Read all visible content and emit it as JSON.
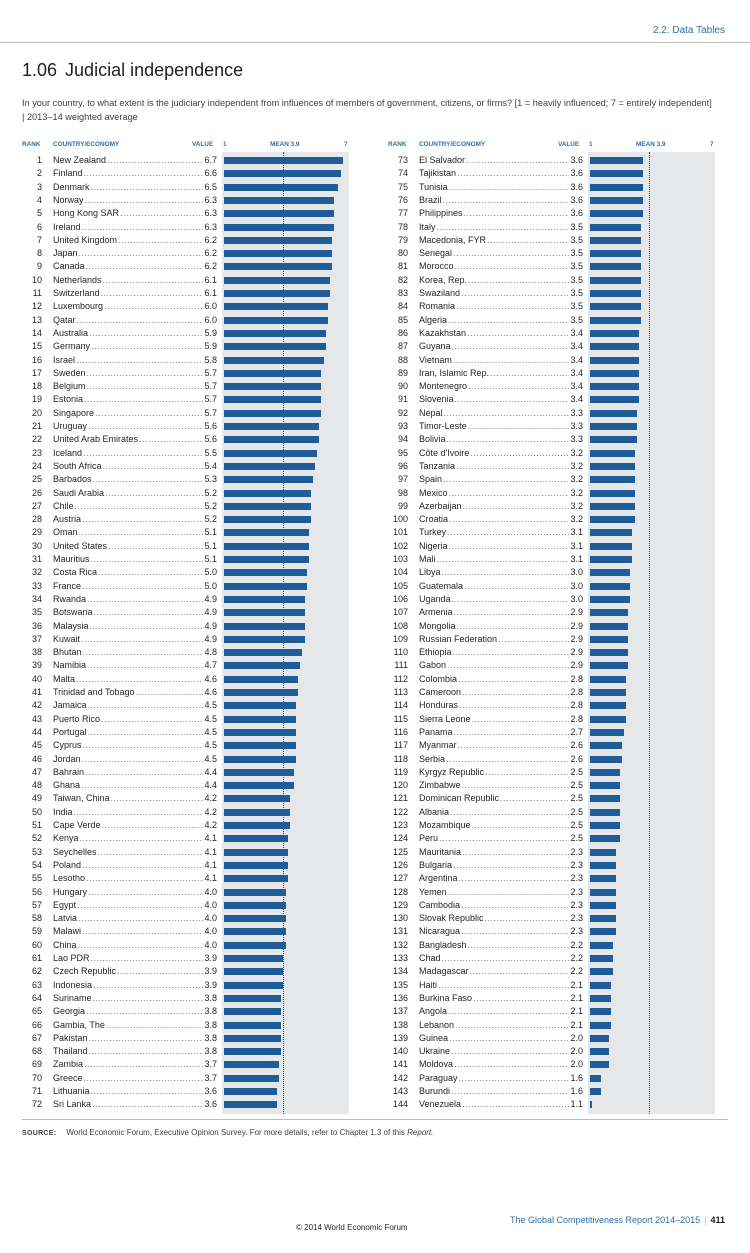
{
  "header": {
    "section": "2.2: Data Tables",
    "number": "1.06",
    "title": "Judicial independence",
    "question_line1": "In your country, to what extent is the judiciary independent from influences of members of government, citizens, or firms? [1 = heavily influenced; 7 = entirely independent]",
    "question_line2": "| 2013–14 weighted average"
  },
  "columns": {
    "rank": "RANK",
    "country": "COUNTRY/ECONOMY",
    "value": "VALUE",
    "scale_min": "1",
    "mean": "MEAN 3.9",
    "scale_max": "7"
  },
  "chart_data": {
    "type": "bar",
    "orientation": "horizontal",
    "xlim": [
      1,
      7
    ],
    "mean": 3.9,
    "rows": [
      {
        "rank": "1",
        "country": "New Zealand",
        "value": 6.7
      },
      {
        "rank": "2",
        "country": "Finland",
        "value": 6.6
      },
      {
        "rank": "3",
        "country": "Denmark",
        "value": 6.5
      },
      {
        "rank": "4",
        "country": "Norway",
        "value": 6.3
      },
      {
        "rank": "5",
        "country": "Hong Kong SAR",
        "value": 6.3
      },
      {
        "rank": "6",
        "country": "Ireland",
        "value": 6.3
      },
      {
        "rank": "7",
        "country": "United Kingdom",
        "value": 6.2
      },
      {
        "rank": "8",
        "country": "Japan",
        "value": 6.2
      },
      {
        "rank": "9",
        "country": "Canada",
        "value": 6.2
      },
      {
        "rank": "10",
        "country": "Netherlands",
        "value": 6.1
      },
      {
        "rank": "11",
        "country": "Switzerland",
        "value": 6.1
      },
      {
        "rank": "12",
        "country": "Luxembourg",
        "value": 6.0
      },
      {
        "rank": "13",
        "country": "Qatar",
        "value": 6.0
      },
      {
        "rank": "14",
        "country": "Australia",
        "value": 5.9
      },
      {
        "rank": "15",
        "country": "Germany",
        "value": 5.9
      },
      {
        "rank": "16",
        "country": "Israel",
        "value": 5.8
      },
      {
        "rank": "17",
        "country": "Sweden",
        "value": 5.7
      },
      {
        "rank": "18",
        "country": "Belgium",
        "value": 5.7
      },
      {
        "rank": "19",
        "country": "Estonia",
        "value": 5.7
      },
      {
        "rank": "20",
        "country": "Singapore",
        "value": 5.7
      },
      {
        "rank": "21",
        "country": "Uruguay",
        "value": 5.6
      },
      {
        "rank": "22",
        "country": "United Arab Emirates",
        "value": 5.6
      },
      {
        "rank": "23",
        "country": "Iceland",
        "value": 5.5
      },
      {
        "rank": "24",
        "country": "South Africa",
        "value": 5.4
      },
      {
        "rank": "25",
        "country": "Barbados",
        "value": 5.3
      },
      {
        "rank": "26",
        "country": "Saudi Arabia",
        "value": 5.2
      },
      {
        "rank": "27",
        "country": "Chile",
        "value": 5.2
      },
      {
        "rank": "28",
        "country": "Austria",
        "value": 5.2
      },
      {
        "rank": "29",
        "country": "Oman",
        "value": 5.1
      },
      {
        "rank": "30",
        "country": "United States",
        "value": 5.1
      },
      {
        "rank": "31",
        "country": "Mauritius",
        "value": 5.1
      },
      {
        "rank": "32",
        "country": "Costa Rica",
        "value": 5.0
      },
      {
        "rank": "33",
        "country": "France",
        "value": 5.0
      },
      {
        "rank": "34",
        "country": "Rwanda",
        "value": 4.9
      },
      {
        "rank": "35",
        "country": "Botswana",
        "value": 4.9
      },
      {
        "rank": "36",
        "country": "Malaysia",
        "value": 4.9
      },
      {
        "rank": "37",
        "country": "Kuwait",
        "value": 4.9
      },
      {
        "rank": "38",
        "country": "Bhutan",
        "value": 4.8
      },
      {
        "rank": "39",
        "country": "Namibia",
        "value": 4.7
      },
      {
        "rank": "40",
        "country": "Malta",
        "value": 4.6
      },
      {
        "rank": "41",
        "country": "Trinidad and Tobago",
        "value": 4.6
      },
      {
        "rank": "42",
        "country": "Jamaica",
        "value": 4.5
      },
      {
        "rank": "43",
        "country": "Puerto Rico",
        "value": 4.5
      },
      {
        "rank": "44",
        "country": "Portugal",
        "value": 4.5
      },
      {
        "rank": "45",
        "country": "Cyprus",
        "value": 4.5
      },
      {
        "rank": "46",
        "country": "Jordan",
        "value": 4.5
      },
      {
        "rank": "47",
        "country": "Bahrain",
        "value": 4.4
      },
      {
        "rank": "48",
        "country": "Ghana",
        "value": 4.4
      },
      {
        "rank": "49",
        "country": "Taiwan, China",
        "value": 4.2
      },
      {
        "rank": "50",
        "country": "India",
        "value": 4.2
      },
      {
        "rank": "51",
        "country": "Cape Verde",
        "value": 4.2
      },
      {
        "rank": "52",
        "country": "Kenya",
        "value": 4.1
      },
      {
        "rank": "53",
        "country": "Seychelles",
        "value": 4.1
      },
      {
        "rank": "54",
        "country": "Poland",
        "value": 4.1
      },
      {
        "rank": "55",
        "country": "Lesotho",
        "value": 4.1
      },
      {
        "rank": "56",
        "country": "Hungary",
        "value": 4.0
      },
      {
        "rank": "57",
        "country": "Egypt",
        "value": 4.0
      },
      {
        "rank": "58",
        "country": "Latvia",
        "value": 4.0
      },
      {
        "rank": "59",
        "country": "Malawi",
        "value": 4.0
      },
      {
        "rank": "60",
        "country": "China",
        "value": 4.0
      },
      {
        "rank": "61",
        "country": "Lao PDR",
        "value": 3.9
      },
      {
        "rank": "62",
        "country": "Czech Republic",
        "value": 3.9
      },
      {
        "rank": "63",
        "country": "Indonesia",
        "value": 3.9
      },
      {
        "rank": "64",
        "country": "Suriname",
        "value": 3.8
      },
      {
        "rank": "65",
        "country": "Georgia",
        "value": 3.8
      },
      {
        "rank": "66",
        "country": "Gambia, The",
        "value": 3.8
      },
      {
        "rank": "67",
        "country": "Pakistan",
        "value": 3.8
      },
      {
        "rank": "68",
        "country": "Thailand",
        "value": 3.8
      },
      {
        "rank": "69",
        "country": "Zambia",
        "value": 3.7
      },
      {
        "rank": "70",
        "country": "Greece",
        "value": 3.7
      },
      {
        "rank": "71",
        "country": "Lithuania",
        "value": 3.6
      },
      {
        "rank": "72",
        "country": "Sri Lanka",
        "value": 3.6
      },
      {
        "rank": "73",
        "country": "El Salvador",
        "value": 3.6
      },
      {
        "rank": "74",
        "country": "Tajikistan",
        "value": 3.6
      },
      {
        "rank": "75",
        "country": "Tunisia",
        "value": 3.6
      },
      {
        "rank": "76",
        "country": "Brazil",
        "value": 3.6
      },
      {
        "rank": "77",
        "country": "Philippines",
        "value": 3.6
      },
      {
        "rank": "78",
        "country": "Italy",
        "value": 3.5
      },
      {
        "rank": "79",
        "country": "Macedonia, FYR",
        "value": 3.5
      },
      {
        "rank": "80",
        "country": "Senegal",
        "value": 3.5
      },
      {
        "rank": "81",
        "country": "Morocco",
        "value": 3.5
      },
      {
        "rank": "82",
        "country": "Korea, Rep.",
        "value": 3.5
      },
      {
        "rank": "83",
        "country": "Swaziland",
        "value": 3.5
      },
      {
        "rank": "84",
        "country": "Romania",
        "value": 3.5
      },
      {
        "rank": "85",
        "country": "Algeria",
        "value": 3.5
      },
      {
        "rank": "86",
        "country": "Kazakhstan",
        "value": 3.4
      },
      {
        "rank": "87",
        "country": "Guyana",
        "value": 3.4
      },
      {
        "rank": "88",
        "country": "Vietnam",
        "value": 3.4
      },
      {
        "rank": "89",
        "country": "Iran, Islamic Rep.",
        "value": 3.4
      },
      {
        "rank": "90",
        "country": "Montenegro",
        "value": 3.4
      },
      {
        "rank": "91",
        "country": "Slovenia",
        "value": 3.4
      },
      {
        "rank": "92",
        "country": "Nepal",
        "value": 3.3
      },
      {
        "rank": "93",
        "country": "Timor-Leste",
        "value": 3.3
      },
      {
        "rank": "94",
        "country": "Bolivia",
        "value": 3.3
      },
      {
        "rank": "95",
        "country": "Côte d'Ivoire",
        "value": 3.2
      },
      {
        "rank": "96",
        "country": "Tanzania",
        "value": 3.2
      },
      {
        "rank": "97",
        "country": "Spain",
        "value": 3.2
      },
      {
        "rank": "98",
        "country": "Mexico",
        "value": 3.2
      },
      {
        "rank": "99",
        "country": "Azerbaijan",
        "value": 3.2
      },
      {
        "rank": "100",
        "country": "Croatia",
        "value": 3.2
      },
      {
        "rank": "101",
        "country": "Turkey",
        "value": 3.1
      },
      {
        "rank": "102",
        "country": "Nigeria",
        "value": 3.1
      },
      {
        "rank": "103",
        "country": "Mali",
        "value": 3.1
      },
      {
        "rank": "104",
        "country": "Libya",
        "value": 3.0
      },
      {
        "rank": "105",
        "country": "Guatemala",
        "value": 3.0
      },
      {
        "rank": "106",
        "country": "Uganda",
        "value": 3.0
      },
      {
        "rank": "107",
        "country": "Armenia",
        "value": 2.9
      },
      {
        "rank": "108",
        "country": "Mongolia",
        "value": 2.9
      },
      {
        "rank": "109",
        "country": "Russian Federation",
        "value": 2.9
      },
      {
        "rank": "110",
        "country": "Ethiopia",
        "value": 2.9
      },
      {
        "rank": "111",
        "country": "Gabon",
        "value": 2.9
      },
      {
        "rank": "112",
        "country": "Colombia",
        "value": 2.8
      },
      {
        "rank": "113",
        "country": "Cameroon",
        "value": 2.8
      },
      {
        "rank": "114",
        "country": "Honduras",
        "value": 2.8
      },
      {
        "rank": "115",
        "country": "Sierra Leone",
        "value": 2.8
      },
      {
        "rank": "116",
        "country": "Panama",
        "value": 2.7
      },
      {
        "rank": "117",
        "country": "Myanmar",
        "value": 2.6
      },
      {
        "rank": "118",
        "country": "Serbia",
        "value": 2.6
      },
      {
        "rank": "119",
        "country": "Kyrgyz Republic",
        "value": 2.5
      },
      {
        "rank": "120",
        "country": "Zimbabwe",
        "value": 2.5
      },
      {
        "rank": "121",
        "country": "Dominican Republic",
        "value": 2.5
      },
      {
        "rank": "122",
        "country": "Albania",
        "value": 2.5
      },
      {
        "rank": "123",
        "country": "Mozambique",
        "value": 2.5
      },
      {
        "rank": "124",
        "country": "Peru",
        "value": 2.5
      },
      {
        "rank": "125",
        "country": "Mauritania",
        "value": 2.3
      },
      {
        "rank": "126",
        "country": "Bulgaria",
        "value": 2.3
      },
      {
        "rank": "127",
        "country": "Argentina",
        "value": 2.3
      },
      {
        "rank": "128",
        "country": "Yemen",
        "value": 2.3
      },
      {
        "rank": "129",
        "country": "Cambodia",
        "value": 2.3
      },
      {
        "rank": "130",
        "country": "Slovak Republic",
        "value": 2.3
      },
      {
        "rank": "131",
        "country": "Nicaragua",
        "value": 2.3
      },
      {
        "rank": "132",
        "country": "Bangladesh",
        "value": 2.2
      },
      {
        "rank": "133",
        "country": "Chad",
        "value": 2.2
      },
      {
        "rank": "134",
        "country": "Madagascar",
        "value": 2.2
      },
      {
        "rank": "135",
        "country": "Haiti",
        "value": 2.1
      },
      {
        "rank": "136",
        "country": "Burkina Faso",
        "value": 2.1
      },
      {
        "rank": "137",
        "country": "Angola",
        "value": 2.1
      },
      {
        "rank": "138",
        "country": "Lebanon",
        "value": 2.1
      },
      {
        "rank": "139",
        "country": "Guinea",
        "value": 2.0
      },
      {
        "rank": "140",
        "country": "Ukraine",
        "value": 2.0
      },
      {
        "rank": "141",
        "country": "Moldova",
        "value": 2.0
      },
      {
        "rank": "142",
        "country": "Paraguay",
        "value": 1.6
      },
      {
        "rank": "143",
        "country": "Burundi",
        "value": 1.6
      },
      {
        "rank": "144",
        "country": "Venezuela",
        "value": 1.1
      }
    ]
  },
  "source": {
    "label": "SOURCE:",
    "text": "World Economic Forum, Executive Opinion Survey. For more details, refer to Chapter 1.3 of this",
    "text_italic": "Report."
  },
  "footer": {
    "report": "The Global Competitiveness Report 2014–2015",
    "separator": "|",
    "page": "411",
    "copyright": "© 2014 World Economic Forum"
  },
  "colors": {
    "bar": "#1f5d99",
    "plot_bg": "#e6e7e8",
    "accent": "#2f6fa8"
  }
}
